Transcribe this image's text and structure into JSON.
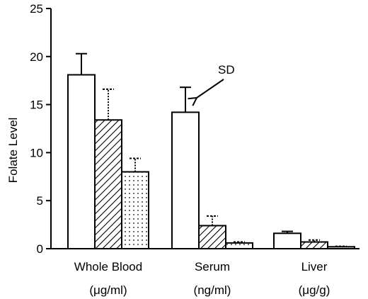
{
  "chart_data": {
    "type": "bar",
    "ylabel": "Folate Level",
    "ylim": [
      0,
      25
    ],
    "yticks": [
      0,
      5,
      10,
      15,
      20,
      25
    ],
    "ytick_labels": [
      "0",
      "5",
      "10",
      "15",
      "20",
      "25"
    ],
    "grid": false,
    "legend": "none",
    "groups": [
      {
        "label": "Whole Blood",
        "unit": "(μg/ml)",
        "bars": [
          {
            "value": 18.1,
            "error": 2.2,
            "pattern": "open"
          },
          {
            "value": 13.4,
            "error": 3.2,
            "pattern": "hatched"
          },
          {
            "value": 8.0,
            "error": 1.4,
            "pattern": "dotted"
          }
        ]
      },
      {
        "label": "Serum",
        "unit": "(ng/ml)",
        "bars": [
          {
            "value": 14.2,
            "error": 2.6,
            "pattern": "open"
          },
          {
            "value": 2.4,
            "error": 1.0,
            "pattern": "hatched"
          },
          {
            "value": 0.6,
            "error": 0.1,
            "pattern": "dotted"
          }
        ]
      },
      {
        "label": "Liver",
        "unit": "(μg/g)",
        "bars": [
          {
            "value": 1.6,
            "error": 0.2,
            "pattern": "open"
          },
          {
            "value": 0.7,
            "error": 0.2,
            "pattern": "hatched"
          },
          {
            "value": 0.2,
            "error": 0.05,
            "pattern": "dotted"
          }
        ]
      }
    ],
    "annotations": [
      {
        "text": "SD",
        "points_to": "Serum open bar error bar"
      }
    ]
  }
}
